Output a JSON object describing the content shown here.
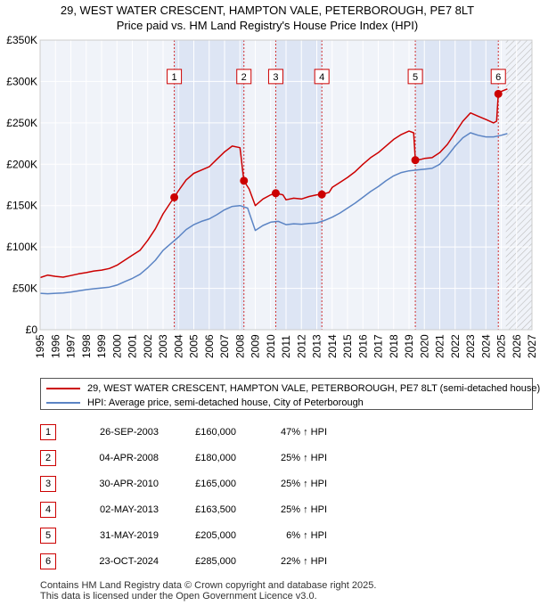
{
  "header": {
    "title_line1": "29, WEST WATER CRESCENT, HAMPTON VALE, PETERBOROUGH, PE7 8LT",
    "title_line2": "Price paid vs. HM Land Registry's House Price Index (HPI)"
  },
  "chart_data": {
    "type": "line",
    "title": "29, WEST WATER CRESCENT, HAMPTON VALE, PETERBOROUGH, PE7 8LT — Price paid vs. HM Land Registry's House Price Index (HPI)",
    "xlabel": "",
    "ylabel": "",
    "xlim": [
      1995,
      2027
    ],
    "ylim": [
      0,
      350000
    ],
    "grid": true,
    "y_ticks": [
      {
        "value": 0,
        "label": "£0"
      },
      {
        "value": 50000,
        "label": "£50K"
      },
      {
        "value": 100000,
        "label": "£100K"
      },
      {
        "value": 150000,
        "label": "£150K"
      },
      {
        "value": 200000,
        "label": "£200K"
      },
      {
        "value": 250000,
        "label": "£250K"
      },
      {
        "value": 300000,
        "label": "£300K"
      },
      {
        "value": 350000,
        "label": "£350K"
      }
    ],
    "x_ticks": [
      "1995",
      "1996",
      "1997",
      "1998",
      "1999",
      "2000",
      "2001",
      "2002",
      "2003",
      "2004",
      "2005",
      "2006",
      "2007",
      "2008",
      "2009",
      "2010",
      "2011",
      "2012",
      "2013",
      "2014",
      "2015",
      "2016",
      "2017",
      "2018",
      "2019",
      "2020",
      "2021",
      "2022",
      "2023",
      "2024",
      "2025",
      "2026",
      "2027"
    ],
    "hatch_from": 2025.3,
    "sale_markers": [
      {
        "label": "1",
        "x": 2003.73,
        "price": 160000,
        "box_price": 306000
      },
      {
        "label": "2",
        "x": 2008.26,
        "price": 180000,
        "box_price": 306000
      },
      {
        "label": "3",
        "x": 2010.33,
        "price": 165000,
        "box_price": 306000
      },
      {
        "label": "4",
        "x": 2013.33,
        "price": 163500,
        "box_price": 306000
      },
      {
        "label": "5",
        "x": 2019.41,
        "price": 205000,
        "box_price": 306000
      },
      {
        "label": "6",
        "x": 2024.81,
        "price": 285000,
        "box_price": 306000
      }
    ],
    "shaded_periods": [
      [
        2003.73,
        2008.26
      ],
      [
        2010.33,
        2013.33
      ],
      [
        2019.41,
        2024.81
      ]
    ],
    "series": [
      {
        "name": "29, WEST WATER CRESCENT, HAMPTON VALE, PETERBOROUGH, PE7 8LT (semi-detached house)",
        "color": "#cc0000",
        "points": [
          [
            1995.0,
            63000
          ],
          [
            1995.5,
            66000
          ],
          [
            1996.0,
            64500
          ],
          [
            1996.5,
            63500
          ],
          [
            1997.0,
            65500
          ],
          [
            1997.5,
            67500
          ],
          [
            1998.0,
            69000
          ],
          [
            1998.5,
            71000
          ],
          [
            1999.0,
            72000
          ],
          [
            1999.5,
            74000
          ],
          [
            2000.0,
            78000
          ],
          [
            2000.5,
            84000
          ],
          [
            2001.0,
            90000
          ],
          [
            2001.5,
            96000
          ],
          [
            2002.0,
            108000
          ],
          [
            2002.5,
            122000
          ],
          [
            2003.0,
            140000
          ],
          [
            2003.5,
            154000
          ],
          [
            2003.73,
            160000
          ],
          [
            2004.0,
            168000
          ],
          [
            2004.5,
            181000
          ],
          [
            2005.0,
            189000
          ],
          [
            2005.5,
            193000
          ],
          [
            2006.0,
            197000
          ],
          [
            2006.5,
            206000
          ],
          [
            2007.0,
            215000
          ],
          [
            2007.5,
            222000
          ],
          [
            2008.0,
            220000
          ],
          [
            2008.26,
            180000
          ],
          [
            2008.6,
            170000
          ],
          [
            2009.0,
            150000
          ],
          [
            2009.5,
            158000
          ],
          [
            2010.0,
            163000
          ],
          [
            2010.33,
            165000
          ],
          [
            2010.8,
            163000
          ],
          [
            2011.0,
            157000
          ],
          [
            2011.5,
            159000
          ],
          [
            2012.0,
            158000
          ],
          [
            2012.5,
            161000
          ],
          [
            2013.0,
            163000
          ],
          [
            2013.33,
            163500
          ],
          [
            2013.8,
            166000
          ],
          [
            2014.0,
            172000
          ],
          [
            2014.5,
            178000
          ],
          [
            2015.0,
            184000
          ],
          [
            2015.5,
            191000
          ],
          [
            2016.0,
            200000
          ],
          [
            2016.5,
            208000
          ],
          [
            2017.0,
            214000
          ],
          [
            2017.5,
            222000
          ],
          [
            2018.0,
            230000
          ],
          [
            2018.5,
            236000
          ],
          [
            2019.0,
            240000
          ],
          [
            2019.3,
            238000
          ],
          [
            2019.41,
            205000
          ],
          [
            2019.8,
            206000
          ],
          [
            2020.0,
            207000
          ],
          [
            2020.5,
            208000
          ],
          [
            2021.0,
            214000
          ],
          [
            2021.5,
            224000
          ],
          [
            2022.0,
            238000
          ],
          [
            2022.5,
            252000
          ],
          [
            2023.0,
            262000
          ],
          [
            2023.5,
            258000
          ],
          [
            2024.0,
            254000
          ],
          [
            2024.5,
            250000
          ],
          [
            2024.7,
            252000
          ],
          [
            2024.81,
            285000
          ],
          [
            2025.0,
            288000
          ],
          [
            2025.4,
            291000
          ]
        ]
      },
      {
        "name": "HPI: Average price, semi-detached house, City of Peterborough",
        "color": "#5b84c4",
        "points": [
          [
            1995.0,
            44000
          ],
          [
            1995.5,
            43500
          ],
          [
            1996.0,
            44000
          ],
          [
            1996.5,
            44500
          ],
          [
            1997.0,
            45500
          ],
          [
            1997.5,
            47000
          ],
          [
            1998.0,
            48500
          ],
          [
            1998.5,
            49500
          ],
          [
            1999.0,
            50500
          ],
          [
            1999.5,
            51500
          ],
          [
            2000.0,
            54000
          ],
          [
            2000.5,
            58000
          ],
          [
            2001.0,
            62000
          ],
          [
            2001.5,
            67000
          ],
          [
            2002.0,
            75000
          ],
          [
            2002.5,
            84000
          ],
          [
            2003.0,
            96000
          ],
          [
            2003.5,
            104000
          ],
          [
            2004.0,
            112000
          ],
          [
            2004.5,
            121000
          ],
          [
            2005.0,
            127000
          ],
          [
            2005.5,
            131000
          ],
          [
            2006.0,
            134000
          ],
          [
            2006.5,
            139000
          ],
          [
            2007.0,
            145000
          ],
          [
            2007.5,
            149000
          ],
          [
            2008.0,
            150000
          ],
          [
            2008.5,
            147000
          ],
          [
            2009.0,
            120000
          ],
          [
            2009.5,
            126000
          ],
          [
            2010.0,
            130000
          ],
          [
            2010.5,
            131000
          ],
          [
            2011.0,
            127000
          ],
          [
            2011.5,
            128000
          ],
          [
            2012.0,
            127500
          ],
          [
            2012.5,
            128500
          ],
          [
            2013.0,
            129000
          ],
          [
            2013.5,
            132000
          ],
          [
            2014.0,
            136000
          ],
          [
            2014.5,
            141000
          ],
          [
            2015.0,
            147000
          ],
          [
            2015.5,
            153000
          ],
          [
            2016.0,
            160000
          ],
          [
            2016.5,
            167000
          ],
          [
            2017.0,
            173000
          ],
          [
            2017.5,
            180000
          ],
          [
            2018.0,
            186000
          ],
          [
            2018.5,
            190000
          ],
          [
            2019.0,
            192000
          ],
          [
            2019.5,
            193000
          ],
          [
            2020.0,
            194000
          ],
          [
            2020.5,
            195000
          ],
          [
            2021.0,
            200000
          ],
          [
            2021.5,
            210000
          ],
          [
            2022.0,
            222000
          ],
          [
            2022.5,
            232000
          ],
          [
            2023.0,
            238000
          ],
          [
            2023.5,
            235000
          ],
          [
            2024.0,
            233000
          ],
          [
            2024.5,
            233000
          ],
          [
            2025.0,
            235000
          ],
          [
            2025.4,
            237000
          ]
        ]
      }
    ]
  },
  "legend": {
    "items": [
      {
        "label": "29, WEST WATER CRESCENT, HAMPTON VALE, PETERBOROUGH, PE7 8LT (semi-detached house)",
        "color": "#cc0000"
      },
      {
        "label": "HPI: Average price, semi-detached house, City of Peterborough",
        "color": "#5b84c4"
      }
    ]
  },
  "sales": [
    {
      "num": "1",
      "date": "26-SEP-2003",
      "price": "£160,000",
      "hpi": "47% ↑ HPI"
    },
    {
      "num": "2",
      "date": "04-APR-2008",
      "price": "£180,000",
      "hpi": "25% ↑ HPI"
    },
    {
      "num": "3",
      "date": "30-APR-2010",
      "price": "£165,000",
      "hpi": "25% ↑ HPI"
    },
    {
      "num": "4",
      "date": "02-MAY-2013",
      "price": "£163,500",
      "hpi": "25% ↑ HPI"
    },
    {
      "num": "5",
      "date": "31-MAY-2019",
      "price": "£205,000",
      "hpi": "6% ↑ HPI"
    },
    {
      "num": "6",
      "date": "23-OCT-2024",
      "price": "£285,000",
      "hpi": "22% ↑ HPI"
    }
  ],
  "footer": {
    "line1": "Contains HM Land Registry data © Crown copyright and database right 2025.",
    "line2": "This data is licensed under the Open Government Licence v3.0."
  }
}
